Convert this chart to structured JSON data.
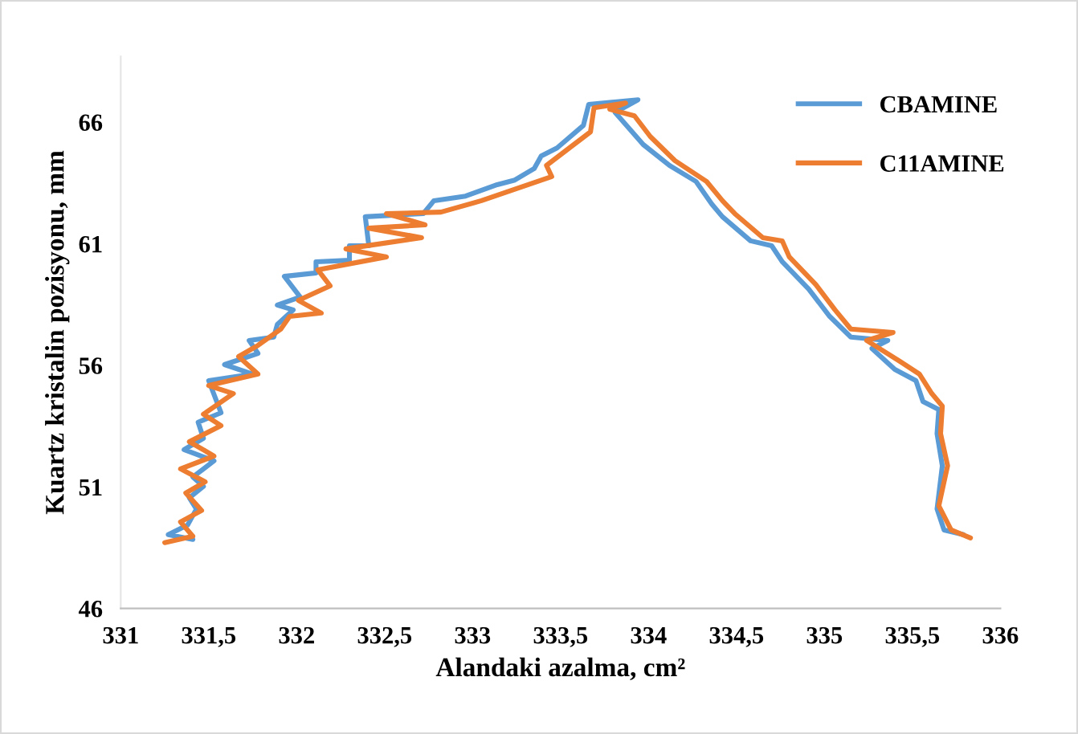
{
  "chart_data": {
    "type": "line",
    "xlabel": "Alandaki azalma, cm²",
    "ylabel": "Kuartz kristalin pozisyonu, mm",
    "xlim": [
      331,
      336
    ],
    "xticks": [
      331,
      {
        "value": 331.5,
        "label": "331,5"
      },
      332,
      {
        "value": 332.5,
        "label": "332,5"
      },
      333,
      {
        "value": 333.5,
        "label": "333,5"
      },
      334,
      {
        "value": 334.5,
        "label": "334,5"
      },
      335,
      {
        "value": 335.5,
        "label": "335,5"
      },
      336
    ],
    "ylim": [
      46,
      68.7
    ],
    "yticks": [
      46,
      51,
      56,
      61,
      66
    ],
    "grid": false,
    "legend": "top right",
    "marker": "none",
    "line_style": "solid",
    "series": [
      {
        "name": "CBAMINE",
        "color": "#5b9bd5",
        "x": [
          331.41,
          331.27,
          331.38,
          331.43,
          331.39,
          331.47,
          331.41,
          331.53,
          331.36,
          331.47,
          331.44,
          331.57,
          331.5,
          331.75,
          331.59,
          331.78,
          331.73,
          331.87,
          331.89,
          331.98,
          331.89,
          332.02,
          331.93,
          332.11,
          332.11,
          332.3,
          332.3,
          332.41,
          332.39,
          332.72,
          332.78,
          332.96,
          333.14,
          333.24,
          333.35,
          333.39,
          333.48,
          333.63,
          333.66,
          333.94,
          333.81,
          333.97,
          334.12,
          334.27,
          334.36,
          334.42,
          334.58,
          334.7,
          334.76,
          334.91,
          335.03,
          335.15,
          335.36,
          335.27,
          335.4,
          335.52,
          335.56,
          335.65,
          335.64,
          335.67,
          335.64,
          335.68,
          335.79
        ],
        "values": [
          48.84,
          49.04,
          49.43,
          50.09,
          50.55,
          51.02,
          51.41,
          52.07,
          52.53,
          53.0,
          53.66,
          54.05,
          55.37,
          55.64,
          56.03,
          56.49,
          57.02,
          57.16,
          57.68,
          58.28,
          58.48,
          58.81,
          59.66,
          59.8,
          60.26,
          60.32,
          60.92,
          60.92,
          62.11,
          62.24,
          62.77,
          62.96,
          63.43,
          63.62,
          64.09,
          64.61,
          64.94,
          65.87,
          66.73,
          66.92,
          66.4,
          65.08,
          64.22,
          63.56,
          62.63,
          62.11,
          61.12,
          60.92,
          60.26,
          59.14,
          58.01,
          57.16,
          57.02,
          56.69,
          55.83,
          55.37,
          54.51,
          54.18,
          53.19,
          51.87,
          50.09,
          49.23,
          49.04
        ]
      },
      {
        "name": "C11AMINE",
        "color": "#ed7d31",
        "x": [
          331.25,
          331.41,
          331.34,
          331.46,
          331.37,
          331.48,
          331.34,
          331.53,
          331.39,
          331.57,
          331.47,
          331.64,
          331.5,
          331.78,
          331.67,
          331.78,
          331.91,
          331.96,
          332.14,
          332.01,
          332.19,
          332.12,
          332.51,
          332.28,
          332.71,
          332.41,
          332.73,
          332.51,
          332.82,
          333.05,
          333.45,
          333.42,
          333.55,
          333.67,
          333.69,
          333.87,
          333.78,
          333.92,
          334.01,
          334.15,
          334.33,
          334.42,
          334.49,
          334.65,
          334.76,
          334.8,
          334.95,
          335.06,
          335.15,
          335.39,
          335.24,
          335.43,
          335.54,
          335.61,
          335.67,
          335.66,
          335.7,
          335.65,
          335.72,
          335.83
        ],
        "values": [
          48.71,
          48.97,
          49.56,
          50.03,
          50.75,
          51.21,
          51.74,
          52.27,
          52.86,
          53.52,
          53.99,
          54.84,
          55.17,
          55.64,
          56.36,
          56.82,
          57.49,
          58.01,
          58.15,
          58.67,
          59.27,
          59.93,
          60.46,
          60.79,
          61.25,
          61.64,
          61.78,
          62.24,
          62.3,
          62.77,
          63.76,
          64.22,
          64.94,
          65.6,
          66.59,
          66.79,
          66.53,
          66.26,
          65.41,
          64.42,
          63.56,
          62.77,
          62.24,
          61.25,
          61.12,
          60.46,
          59.33,
          58.28,
          57.49,
          57.35,
          57.02,
          56.16,
          55.64,
          54.84,
          54.32,
          53.19,
          51.87,
          50.22,
          49.23,
          48.9
        ]
      }
    ]
  }
}
